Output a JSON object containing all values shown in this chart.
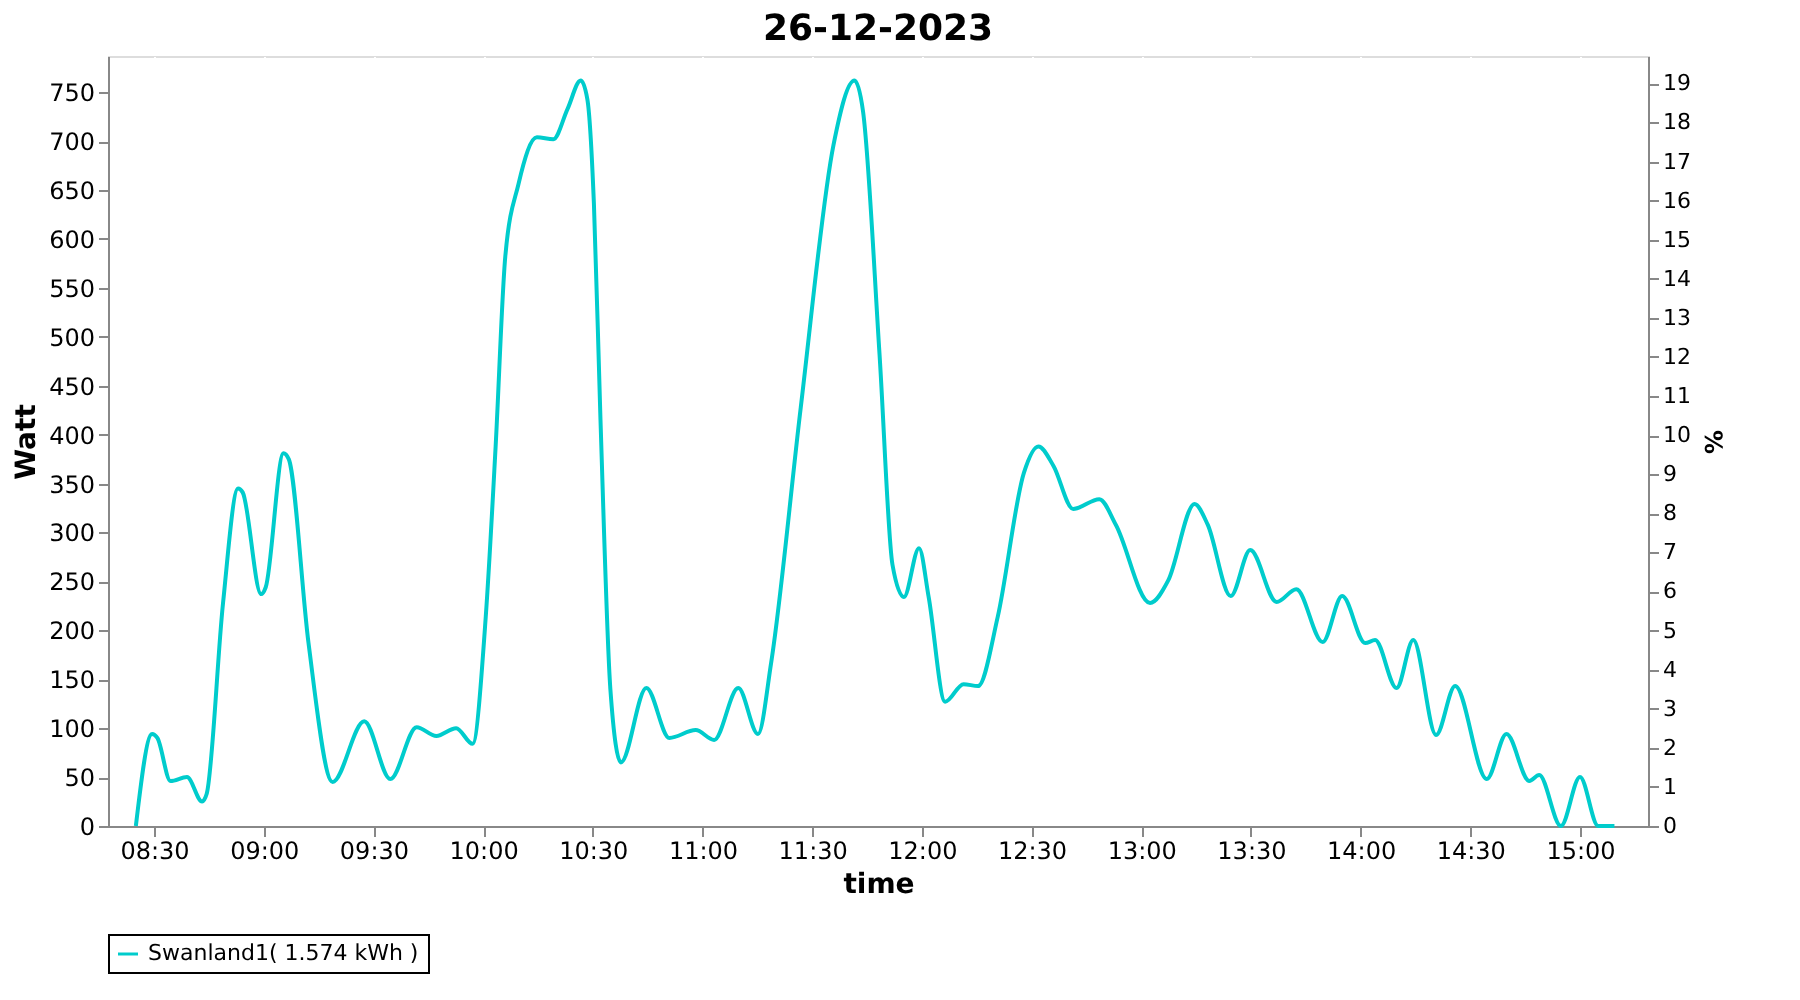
{
  "chart_data": {
    "type": "line",
    "title": "26-12-2023",
    "xlabel": "time",
    "ylabel": "Watt",
    "y2label": "%",
    "xlim": [
      8.29,
      15.31
    ],
    "xticks": [
      {
        "value": 8.5,
        "label": "08:30"
      },
      {
        "value": 9,
        "label": "09:00"
      },
      {
        "value": 9.5,
        "label": "09:30"
      },
      {
        "value": 10,
        "label": "10:00"
      },
      {
        "value": 10.5,
        "label": "10:30"
      },
      {
        "value": 11,
        "label": "11:00"
      },
      {
        "value": 11.5,
        "label": "11:30"
      },
      {
        "value": 12,
        "label": "12:00"
      },
      {
        "value": 12.5,
        "label": "12:30"
      },
      {
        "value": 13,
        "label": "13:00"
      },
      {
        "value": 13.5,
        "label": "13:30"
      },
      {
        "value": 14,
        "label": "14:00"
      },
      {
        "value": 14.5,
        "label": "14:30"
      },
      {
        "value": 15,
        "label": "15:00"
      }
    ],
    "ylim": [
      0,
      787
    ],
    "yticks": [
      0,
      50,
      100,
      150,
      200,
      250,
      300,
      350,
      400,
      450,
      500,
      550,
      600,
      650,
      700,
      750
    ],
    "y2lim": [
      0,
      19.7
    ],
    "y2ticks": [
      0,
      1,
      2,
      3,
      4,
      5,
      6,
      7,
      8,
      9,
      10,
      11,
      12,
      13,
      14,
      15,
      16,
      17,
      18,
      19
    ],
    "grid": true,
    "legend": "bottom",
    "marker": "none",
    "line_style": "solid",
    "series": [
      {
        "name": "Swanland1( 1.574 kWh )",
        "color": "#00cccc",
        "x": [
          8.417,
          8.491,
          8.515,
          8.575,
          8.65,
          8.719,
          8.74,
          8.814,
          8.883,
          8.904,
          8.988,
          9.009,
          9.09,
          9.114,
          9.204,
          9.314,
          9.458,
          9.577,
          9.697,
          9.787,
          9.877,
          9.952,
          10.012,
          10.057,
          10.101,
          10.161,
          10.245,
          10.32,
          10.385,
          10.445,
          10.475,
          10.505,
          10.535,
          10.58,
          10.628,
          10.744,
          10.849,
          10.969,
          11.053,
          11.163,
          11.253,
          11.313,
          11.448,
          11.597,
          11.693,
          11.732,
          11.807,
          11.866,
          11.918,
          11.987,
          12.031,
          12.106,
          12.19,
          12.256,
          12.346,
          12.465,
          12.531,
          12.6,
          12.69,
          12.809,
          12.884,
          13.04,
          13.123,
          13.243,
          13.303,
          13.408,
          13.497,
          13.617,
          13.707,
          13.827,
          13.916,
          14.021,
          14.066,
          14.164,
          14.24,
          14.344,
          14.431,
          14.575,
          14.665,
          14.769,
          14.814,
          14.913,
          15.0,
          15.083,
          15.157
        ],
        "values": [
          0,
          94,
          90,
          46,
          50,
          25,
          33,
          227,
          345,
          341,
          237,
          244,
          381,
          375,
          187,
          45,
          107,
          48,
          101,
          92,
          100,
          84,
          214,
          388,
          582,
          656,
          704,
          702,
          733,
          762,
          743,
          636,
          415,
          140,
          65,
          141,
          90,
          98,
          88,
          141,
          94,
          167,
          428,
          696,
          762,
          730,
          482,
          267,
          234,
          284,
          234,
          127,
          145,
          143,
          214,
          361,
          388,
          368,
          324,
          334,
          308,
          228,
          251,
          329,
          308,
          235,
          282,
          229,
          242,
          188,
          235,
          187,
          190,
          141,
          190,
          93,
          143,
          48,
          94,
          46,
          52,
          0,
          50,
          0,
          0
        ]
      }
    ]
  }
}
